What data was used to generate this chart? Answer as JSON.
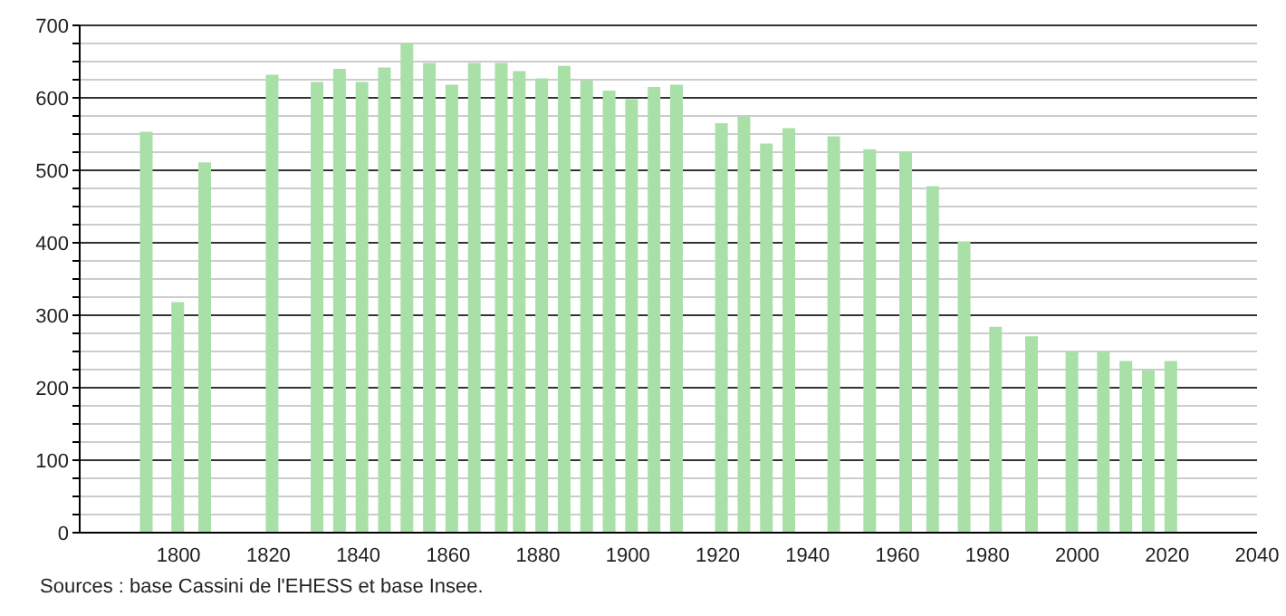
{
  "chart_data": {
    "type": "bar",
    "x": [
      1793,
      1800,
      1806,
      1821,
      1831,
      1836,
      1841,
      1846,
      1851,
      1856,
      1861,
      1866,
      1872,
      1876,
      1881,
      1886,
      1891,
      1896,
      1901,
      1906,
      1911,
      1921,
      1926,
      1931,
      1936,
      1946,
      1954,
      1962,
      1968,
      1975,
      1982,
      1990,
      1999,
      2006,
      2011,
      2016,
      2021
    ],
    "values": [
      553,
      318,
      511,
      632,
      622,
      640,
      622,
      642,
      675,
      648,
      618,
      648,
      648,
      637,
      627,
      644,
      624,
      610,
      598,
      615,
      618,
      565,
      574,
      537,
      558,
      547,
      529,
      525,
      478,
      402,
      284,
      271,
      250,
      250,
      237,
      224,
      237
    ],
    "color": "#a8e0a8",
    "xlim": [
      1778,
      2040
    ],
    "xticks": [
      1800,
      1820,
      1840,
      1860,
      1880,
      1900,
      1920,
      1940,
      1960,
      1980,
      2000,
      2020,
      2040
    ],
    "ylim": [
      0,
      700
    ],
    "yticks": [
      0,
      {
        "value": 25,
        "label": null
      },
      {
        "value": 50,
        "label": null
      },
      {
        "value": 75,
        "label": null
      },
      100,
      {
        "value": 125,
        "label": null
      },
      {
        "value": 150,
        "label": null
      },
      {
        "value": 175,
        "label": null
      },
      200,
      {
        "value": 225,
        "label": null
      },
      {
        "value": 250,
        "label": null
      },
      {
        "value": 275,
        "label": null
      },
      300,
      {
        "value": 325,
        "label": null
      },
      {
        "value": 350,
        "label": null
      },
      {
        "value": 375,
        "label": null
      },
      400,
      {
        "value": 425,
        "label": null
      },
      {
        "value": 450,
        "label": null
      },
      {
        "value": 475,
        "label": null
      },
      500,
      {
        "value": 525,
        "label": null
      },
      {
        "value": 550,
        "label": null
      },
      {
        "value": 575,
        "label": null
      },
      600,
      {
        "value": 625,
        "label": null
      },
      {
        "value": 650,
        "label": null
      },
      {
        "value": 675,
        "label": null
      },
      700
    ],
    "grid": "y",
    "annotations": [
      "Sources : base Cassini de l'EHESS et base Insee."
    ]
  }
}
